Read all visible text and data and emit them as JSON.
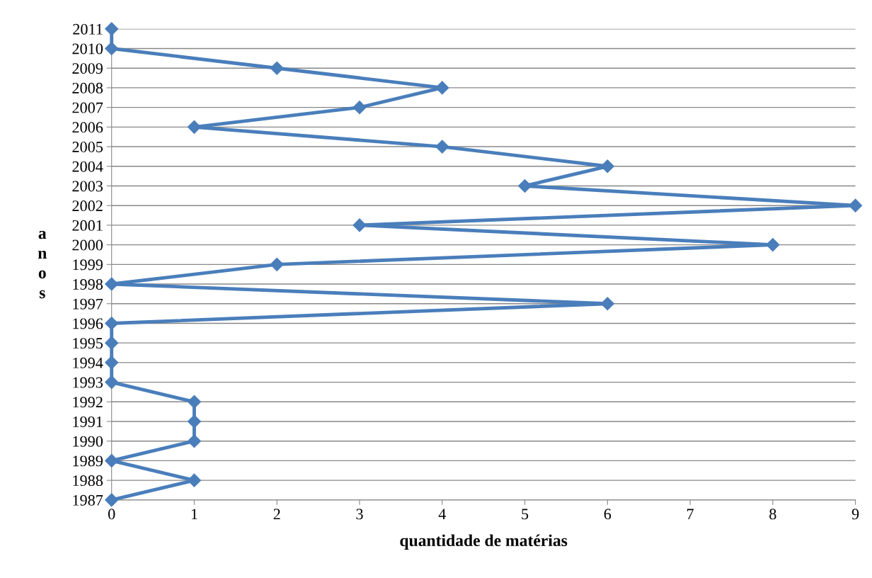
{
  "chart_data": {
    "type": "line",
    "orientation": "horizontal",
    "xlabel": "quantidade de matérias",
    "ylabel": "anos",
    "categories": [
      "2011",
      "2010",
      "2009",
      "2008",
      "2007",
      "2006",
      "2005",
      "2004",
      "2003",
      "2002",
      "2001",
      "2000",
      "1999",
      "1998",
      "1997",
      "1996",
      "1995",
      "1994",
      "1993",
      "1992",
      "1991",
      "1990",
      "1989",
      "1988",
      "1987"
    ],
    "series": [
      {
        "color": "#4a7ebb",
        "values": [
          0,
          0,
          2,
          4,
          3,
          1,
          4,
          6,
          5,
          9,
          3,
          8,
          2,
          0,
          6,
          0,
          0,
          0,
          0,
          1,
          1,
          1,
          0,
          1,
          0
        ]
      }
    ],
    "xlim": [
      0,
      9
    ],
    "xticks": [
      0,
      1,
      2,
      3,
      4,
      5,
      6,
      7,
      8,
      9
    ],
    "grid": "y",
    "marker": "diamond",
    "line_style": "solid",
    "legend": false
  }
}
